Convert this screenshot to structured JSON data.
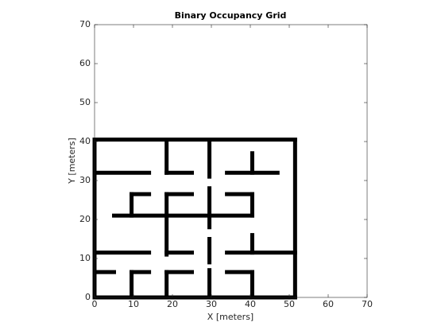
{
  "chart_data": {
    "type": "occupancy",
    "title": "Binary Occupancy Grid",
    "xlabel": "X [meters]",
    "ylabel": "Y [meters]",
    "xlim": [
      0,
      70
    ],
    "ylim": [
      0,
      70
    ],
    "xticks": [
      0,
      10,
      20,
      30,
      40,
      50,
      60,
      70
    ],
    "yticks": [
      0,
      10,
      20,
      30,
      40,
      50,
      60,
      70
    ],
    "color": "#000000",
    "walls": [
      [
        0,
        0,
        0,
        40.5
      ],
      [
        0,
        40.5,
        51.5,
        40.5
      ],
      [
        51.5,
        40.5,
        51.5,
        0
      ],
      [
        0,
        0,
        51.5,
        0
      ],
      [
        0,
        32,
        14,
        32
      ],
      [
        18.5,
        32,
        25,
        32
      ],
      [
        34,
        32,
        47,
        32
      ],
      [
        18.5,
        40.5,
        18.5,
        32
      ],
      [
        29.5,
        40.5,
        29.5,
        31
      ],
      [
        40.5,
        37,
        40.5,
        32
      ],
      [
        9.5,
        26.5,
        14,
        26.5
      ],
      [
        9.5,
        26.5,
        9.5,
        21
      ],
      [
        18.5,
        26.5,
        25,
        26.5
      ],
      [
        18.5,
        26.5,
        18.5,
        11
      ],
      [
        29.5,
        28,
        29.5,
        18
      ],
      [
        34,
        26.5,
        40.5,
        26.5
      ],
      [
        40.5,
        26.5,
        40.5,
        21
      ],
      [
        5,
        21,
        40.5,
        21
      ],
      [
        0,
        11.5,
        14,
        11.5
      ],
      [
        18.5,
        11.5,
        25,
        11.5
      ],
      [
        34,
        11.5,
        51.5,
        11.5
      ],
      [
        29.5,
        15,
        29.5,
        9
      ],
      [
        40.5,
        16,
        40.5,
        11.5
      ],
      [
        0,
        6.5,
        5,
        6.5
      ],
      [
        9.5,
        6.5,
        14,
        6.5
      ],
      [
        9.5,
        6.5,
        9.5,
        0
      ],
      [
        18.5,
        6.5,
        25,
        6.5
      ],
      [
        18.5,
        6.5,
        18.5,
        0
      ],
      [
        29.5,
        7,
        29.5,
        1
      ],
      [
        34,
        6.5,
        40.5,
        6.5
      ],
      [
        40.5,
        6.5,
        40.5,
        0
      ]
    ]
  }
}
